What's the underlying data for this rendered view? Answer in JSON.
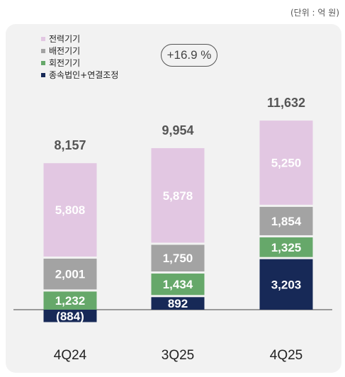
{
  "unit_note": "(단위 : 억 원)",
  "growth_badge": "+16.9 %",
  "colors": {
    "power": "#e2c7e2",
    "distribution": "#a3a3a3",
    "rotating": "#66a86a",
    "subsidiaries": "#172957",
    "panel": "#f2f2f2",
    "baseline": "#666666"
  },
  "chart_data": {
    "type": "bar",
    "stacked": true,
    "categories": [
      "4Q24",
      "3Q25",
      "4Q25"
    ],
    "totals": [
      "8,157",
      "9,954",
      "11,632"
    ],
    "series": [
      {
        "name": "종속법인+연결조정",
        "key": "subsidiaries",
        "values": [
          -884,
          892,
          3203
        ],
        "labels": [
          "(884)",
          "892",
          "3,203"
        ]
      },
      {
        "name": "회전기기",
        "key": "rotating",
        "values": [
          1232,
          1434,
          1325
        ],
        "labels": [
          "1,232",
          "1,434",
          "1,325"
        ]
      },
      {
        "name": "배전기기",
        "key": "distribution",
        "values": [
          2001,
          1750,
          1854
        ],
        "labels": [
          "2,001",
          "1,750",
          "1,854"
        ]
      },
      {
        "name": "전력기기",
        "key": "power",
        "values": [
          5808,
          5878,
          5250
        ],
        "labels": [
          "5,808",
          "5,878",
          "5,250"
        ]
      }
    ],
    "legend_order": [
      "전력기기",
      "배전기기",
      "회전기기",
      "종속법인+연결조정"
    ],
    "legend_position": "top-left"
  }
}
